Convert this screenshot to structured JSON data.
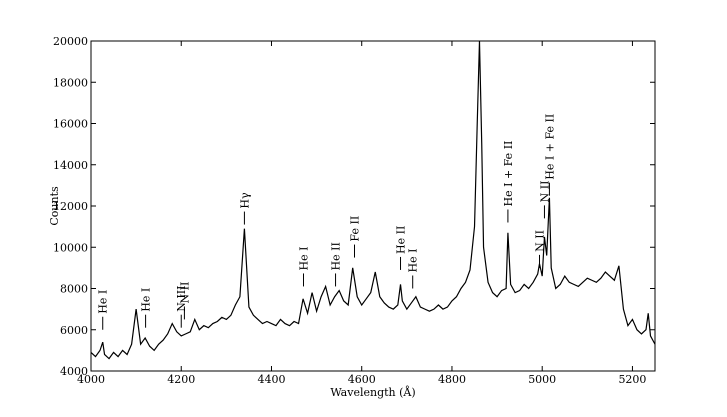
{
  "chart_data": {
    "type": "line",
    "xlabel": "Wavelength (Å)",
    "ylabel": "Counts",
    "xlim": [
      4000,
      5250
    ],
    "ylim": [
      4000,
      20000
    ],
    "xticks": [
      4000,
      4200,
      4400,
      4600,
      4800,
      5000,
      5200
    ],
    "yticks": [
      4000,
      6000,
      8000,
      10000,
      12000,
      14000,
      16000,
      18000,
      20000
    ],
    "color": "#000000",
    "x": [
      4000,
      4010,
      4020,
      4026,
      4030,
      4040,
      4050,
      4060,
      4070,
      4080,
      4090,
      4100,
      4110,
      4120,
      4130,
      4140,
      4150,
      4160,
      4170,
      4180,
      4190,
      4200,
      4210,
      4220,
      4230,
      4240,
      4250,
      4260,
      4270,
      4280,
      4290,
      4300,
      4310,
      4320,
      4330,
      4340,
      4350,
      4360,
      4370,
      4380,
      4390,
      4400,
      4410,
      4420,
      4430,
      4440,
      4450,
      4460,
      4470,
      4480,
      4490,
      4500,
      4510,
      4520,
      4530,
      4540,
      4550,
      4560,
      4570,
      4580,
      4590,
      4600,
      4610,
      4620,
      4630,
      4640,
      4650,
      4660,
      4670,
      4680,
      4686,
      4690,
      4700,
      4710,
      4720,
      4730,
      4740,
      4750,
      4760,
      4770,
      4780,
      4790,
      4800,
      4810,
      4820,
      4830,
      4840,
      4850,
      4856,
      4861,
      4866,
      4870,
      4880,
      4890,
      4900,
      4910,
      4920,
      4924,
      4930,
      4940,
      4950,
      4960,
      4970,
      4980,
      4990,
      4994,
      5000,
      5005,
      5010,
      5016,
      5020,
      5030,
      5040,
      5050,
      5060,
      5070,
      5080,
      5090,
      5100,
      5110,
      5120,
      5130,
      5140,
      5150,
      5160,
      5170,
      5180,
      5190,
      5200,
      5210,
      5220,
      5230,
      5235,
      5240,
      5250
    ],
    "values": [
      4900,
      4700,
      5000,
      5400,
      4800,
      4600,
      4900,
      4700,
      5000,
      4800,
      5300,
      7000,
      5300,
      5600,
      5200,
      5000,
      5300,
      5500,
      5800,
      6300,
      5900,
      5700,
      5800,
      5900,
      6500,
      6000,
      6200,
      6100,
      6300,
      6400,
      6600,
      6500,
      6700,
      7200,
      7600,
      10900,
      7100,
      6700,
      6500,
      6300,
      6400,
      6300,
      6200,
      6500,
      6300,
      6200,
      6400,
      6300,
      7500,
      6800,
      7800,
      6900,
      7600,
      8100,
      7200,
      7600,
      7900,
      7400,
      7200,
      9000,
      7600,
      7200,
      7500,
      7800,
      8800,
      7600,
      7300,
      7100,
      7000,
      7200,
      8200,
      7400,
      7000,
      7300,
      7600,
      7100,
      7000,
      6900,
      7000,
      7200,
      7000,
      7100,
      7400,
      7600,
      8000,
      8300,
      8900,
      11000,
      16000,
      20000,
      15000,
      10000,
      8300,
      7800,
      7600,
      7900,
      8000,
      10700,
      8200,
      7800,
      7900,
      8200,
      8000,
      8300,
      8700,
      9200,
      8600,
      10500,
      9600,
      12400,
      9000,
      8000,
      8200,
      8600,
      8300,
      8200,
      8100,
      8300,
      8500,
      8400,
      8300,
      8500,
      8800,
      8600,
      8400,
      9100,
      7000,
      6200,
      6500,
      6000,
      5800,
      6000,
      6800,
      5700,
      5300
    ],
    "annotations": [
      {
        "text": "He I",
        "x": 4026,
        "y": 6000
      },
      {
        "text": "He I",
        "x": 4121,
        "y": 6100
      },
      {
        "text": "N III",
        "x": 4200,
        "y": 6100
      },
      {
        "text": "N II",
        "x": 4207,
        "y": 6500
      },
      {
        "text": "Hγ",
        "x": 4340,
        "y": 11100
      },
      {
        "text": "He I",
        "x": 4471,
        "y": 8100
      },
      {
        "text": "He II",
        "x": 4542,
        "y": 8100
      },
      {
        "text": "Fe II",
        "x": 4584,
        "y": 9500
      },
      {
        "text": "He II",
        "x": 4686,
        "y": 8900
      },
      {
        "text": "He I",
        "x": 4713,
        "y": 8000
      },
      {
        "text": "He I + Fe II",
        "x": 4924,
        "y": 11200
      },
      {
        "text": "N II",
        "x": 4994,
        "y": 9000
      },
      {
        "text": "N II",
        "x": 5005,
        "y": 11400
      },
      {
        "text": "He I + Fe II",
        "x": 5016,
        "y": 12500
      }
    ]
  }
}
